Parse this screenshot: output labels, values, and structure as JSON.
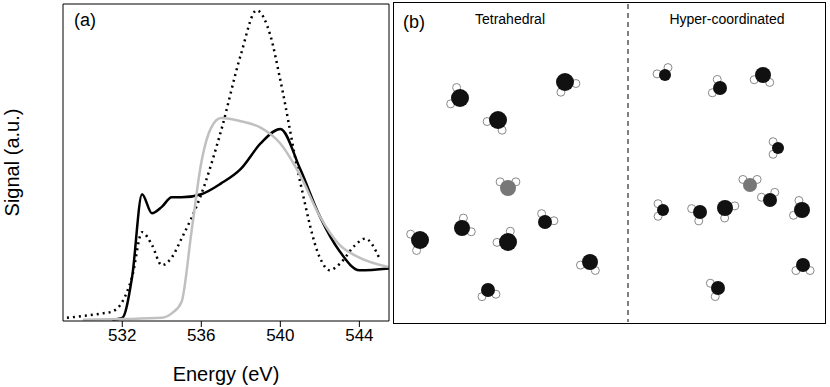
{
  "chart_data": {
    "type": "line",
    "panel_label": "(a)",
    "x_label": "Energy (eV)",
    "y_label": "Signal (a.u.)",
    "xlim": [
      529,
      545.5
    ],
    "xticks": [
      532,
      536,
      540,
      544
    ],
    "ylim": [
      0,
      5
    ],
    "yticks": [
      0,
      1,
      2,
      3,
      4,
      5
    ],
    "tick_labels": "x",
    "grid": false,
    "series": [
      {
        "color": "#000000",
        "line_style": "dotted",
        "x": [
          529.2,
          530,
          531,
          531.5,
          532,
          532.5,
          533,
          533.5,
          534,
          534.5,
          535,
          536,
          537,
          538,
          538.8,
          539.5,
          540,
          541,
          542,
          542.5,
          543,
          543.8,
          544.3,
          545
        ],
        "values": [
          0.05,
          0.08,
          0.12,
          0.15,
          0.3,
          0.7,
          1.4,
          1.2,
          0.88,
          1.0,
          1.3,
          2.0,
          3.0,
          4.2,
          4.9,
          4.5,
          3.8,
          2.2,
          1.0,
          0.8,
          0.9,
          1.2,
          1.3,
          1.0
        ]
      },
      {
        "color": "#000000",
        "line_style": "solid",
        "x": [
          531.5,
          532,
          532.5,
          533,
          533.5,
          534,
          534.5,
          535,
          536,
          537,
          538,
          539,
          540,
          541,
          542,
          543,
          544,
          545.5
        ],
        "values": [
          0.02,
          0.05,
          0.7,
          2.0,
          1.7,
          1.8,
          1.95,
          1.95,
          2.0,
          2.17,
          2.4,
          2.8,
          3.03,
          2.4,
          1.65,
          1.1,
          0.8,
          0.83
        ]
      },
      {
        "color": "#c0c0c0",
        "line_style": "solid",
        "x": [
          530,
          532,
          534,
          534.5,
          535,
          535.5,
          536,
          536.5,
          537,
          538,
          539,
          540,
          541,
          542,
          543,
          544,
          545.5
        ],
        "values": [
          0.02,
          0.03,
          0.05,
          0.12,
          0.3,
          1.4,
          2.5,
          3.05,
          3.2,
          3.15,
          3.05,
          2.8,
          2.3,
          1.65,
          1.2,
          1.0,
          0.85
        ]
      }
    ]
  },
  "diagram": {
    "panel_label": "(b)",
    "sections": [
      "Tetrahedral",
      "Hyper-coordinated"
    ]
  }
}
